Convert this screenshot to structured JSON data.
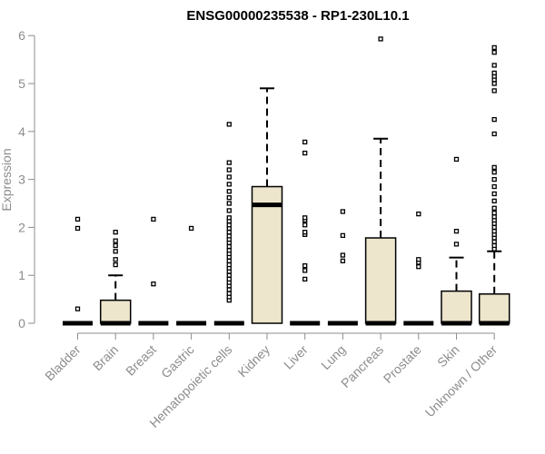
{
  "chart_data": {
    "type": "box",
    "title": "ENSG00000235538 - RP1-230L10.1",
    "xlabel": "",
    "ylabel": "Expression",
    "ylim": [
      0,
      6
    ],
    "yticks": [
      0,
      1,
      2,
      3,
      4,
      5,
      6
    ],
    "grid": false,
    "colors": {
      "box_fill": "#ede5cc",
      "stroke": "#000000",
      "axis": "#8c8c8c",
      "tick_text": "#8c8c8c"
    },
    "categories": [
      "Bladder",
      "Brain",
      "Breast",
      "Gastric",
      "Hematopoietic cells",
      "Kidney",
      "Liver",
      "Lung",
      "Pancreas",
      "Prostate",
      "Skin",
      "Unknown / Other"
    ],
    "boxes": [
      {
        "category": "Bladder",
        "q1": 0,
        "median": 0,
        "q3": 0,
        "whisker_low": 0,
        "whisker_high": 0,
        "outliers": [
          0.3,
          1.98,
          2.17
        ]
      },
      {
        "category": "Brain",
        "q1": 0,
        "median": 0,
        "q3": 0.48,
        "whisker_low": 0,
        "whisker_high": 1.0,
        "outliers": [
          1.22,
          1.33,
          1.5,
          1.62,
          1.72,
          1.9
        ]
      },
      {
        "category": "Breast",
        "q1": 0,
        "median": 0,
        "q3": 0,
        "whisker_low": 0,
        "whisker_high": 0,
        "outliers": [
          0.82,
          2.17
        ]
      },
      {
        "category": "Gastric",
        "q1": 0,
        "median": 0,
        "q3": 0,
        "whisker_low": 0,
        "whisker_high": 0,
        "outliers": [
          1.98
        ]
      },
      {
        "category": "Hematopoietic cells",
        "q1": 0,
        "median": 0,
        "q3": 0,
        "whisker_low": 0,
        "whisker_high": 0,
        "outliers": [
          0.48,
          0.55,
          0.62,
          0.7,
          0.78,
          0.85,
          0.92,
          1.0,
          1.08,
          1.15,
          1.22,
          1.3,
          1.38,
          1.45,
          1.52,
          1.6,
          1.68,
          1.75,
          1.82,
          1.9,
          1.98,
          2.05,
          2.13,
          2.2,
          2.35,
          2.5,
          2.62,
          2.75,
          2.9,
          3.05,
          3.2,
          3.35,
          4.15
        ]
      },
      {
        "category": "Kidney",
        "q1": 0,
        "median": 2.47,
        "q3": 2.85,
        "whisker_low": 0,
        "whisker_high": 4.9,
        "outliers": []
      },
      {
        "category": "Liver",
        "q1": 0,
        "median": 0,
        "q3": 0,
        "whisker_low": 0,
        "whisker_high": 0,
        "outliers": [
          0.92,
          1.1,
          1.2,
          1.85,
          1.9,
          2.05,
          2.15,
          2.2,
          3.55,
          3.78
        ]
      },
      {
        "category": "Lung",
        "q1": 0,
        "median": 0,
        "q3": 0,
        "whisker_low": 0,
        "whisker_high": 0,
        "outliers": [
          1.3,
          1.42,
          1.83,
          2.33
        ]
      },
      {
        "category": "Pancreas",
        "q1": 0,
        "median": 0,
        "q3": 1.78,
        "whisker_low": 0,
        "whisker_high": 3.85,
        "outliers": [
          5.93
        ]
      },
      {
        "category": "Prostate",
        "q1": 0,
        "median": 0,
        "q3": 0,
        "whisker_low": 0,
        "whisker_high": 0,
        "outliers": [
          1.18,
          1.27,
          1.33,
          2.28
        ]
      },
      {
        "category": "Skin",
        "q1": 0,
        "median": 0,
        "q3": 0.67,
        "whisker_low": 0,
        "whisker_high": 1.37,
        "outliers": [
          1.65,
          1.92,
          3.42
        ]
      },
      {
        "category": "Unknown / Other",
        "q1": 0,
        "median": 0,
        "q3": 0.61,
        "whisker_low": 0,
        "whisker_high": 1.5,
        "outliers": [
          1.55,
          1.62,
          1.7,
          1.78,
          1.85,
          1.92,
          2.0,
          2.08,
          2.15,
          2.22,
          2.3,
          2.4,
          2.55,
          2.7,
          2.85,
          3.0,
          3.15,
          3.25,
          3.95,
          4.25,
          4.85,
          5.0,
          5.08,
          5.15,
          5.22,
          5.38,
          5.65,
          5.75
        ]
      }
    ]
  }
}
